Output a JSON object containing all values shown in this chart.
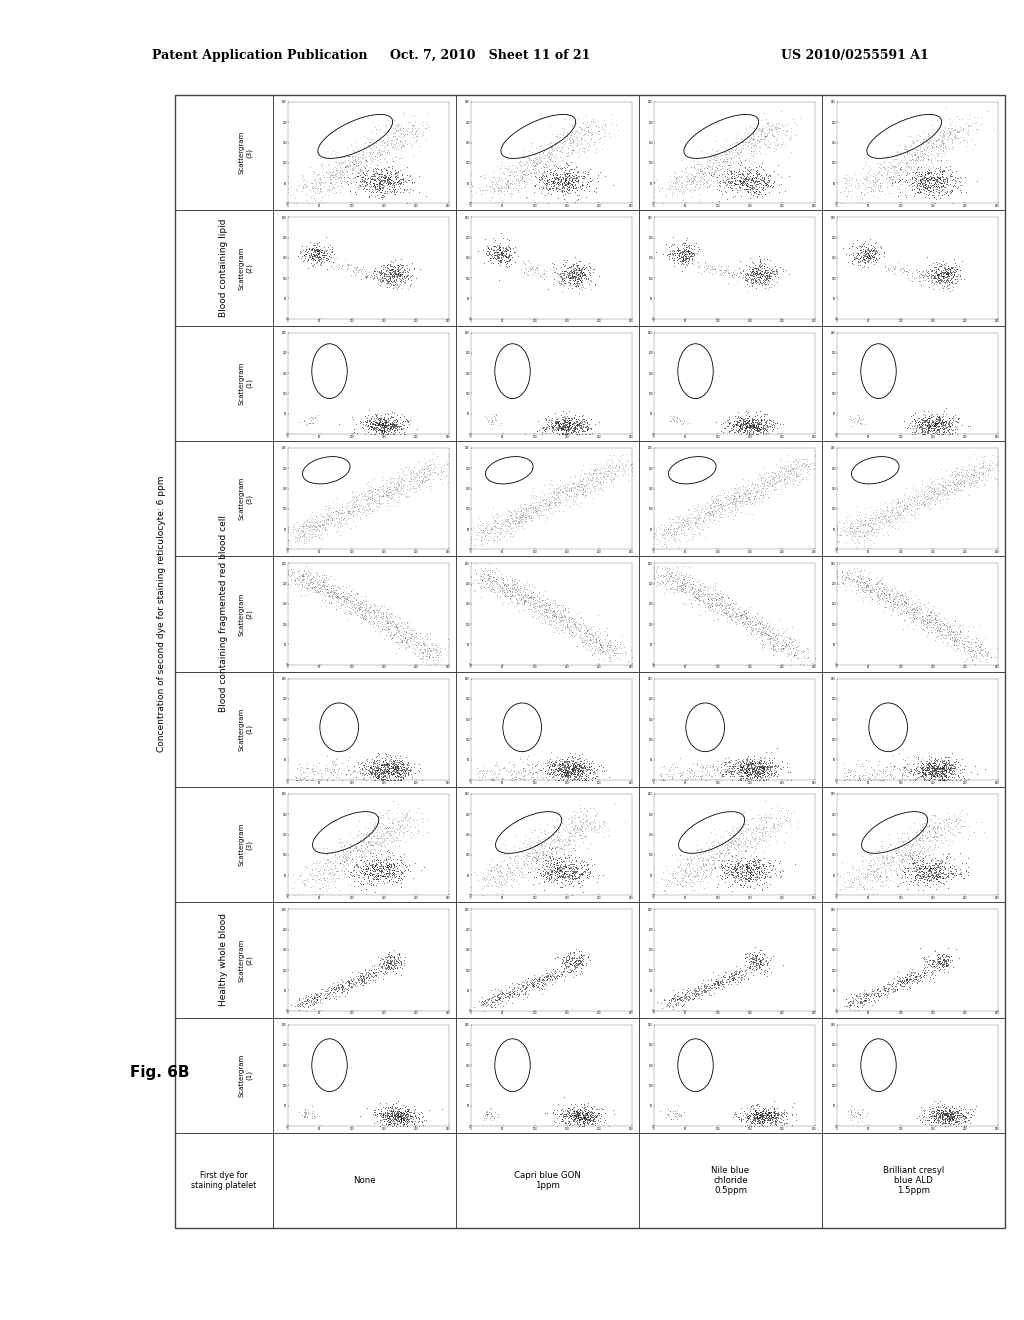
{
  "header_left": "Patent Application Publication",
  "header_center": "Oct. 7, 2010   Sheet 11 of 21",
  "header_right": "US 2010/0255591 A1",
  "fig_label": "Fig. 6B",
  "concentration_label": "Concentration of second dye for staining reticulocyte: 6 ppm",
  "col_header_first": "First dye for\nstaining platelet",
  "group_headers": [
    "Healthy whole blood",
    "Blood containing fragmented red blood cell",
    "Blood containing lipid"
  ],
  "sub_headers": [
    "Scattergram\n(1)",
    "Scattergram\n(2)",
    "Scattergram\n(3)"
  ],
  "row_labels": [
    [
      "None",
      ""
    ],
    [
      "Capri blue GON",
      "1ppm"
    ],
    [
      "Nile blue\nchloride",
      "0.5ppm"
    ],
    [
      "Brilliant cresyl\nblue ALD",
      "1.5ppm"
    ]
  ],
  "bg_color": "#ffffff",
  "line_color": "#444444",
  "text_color": "#000000"
}
